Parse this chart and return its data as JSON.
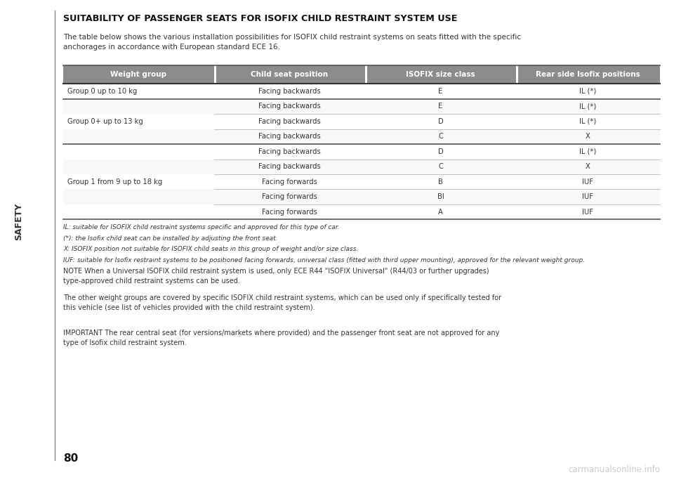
{
  "title": "SUITABILITY OF PASSENGER SEATS FOR ISOFIX CHILD RESTRAINT SYSTEM USE",
  "intro": "The table below shows the various installation possibilities for ISOFIX child restraint systems on seats fitted with the specific\nanchorages in accordance with European standard ECE 16.",
  "header": [
    "Weight group",
    "Child seat position",
    "ISOFIX size class",
    "Rear side Isofix positions"
  ],
  "header_bg": "#8c8c8c",
  "header_text_color": "#ffffff",
  "rows": [
    [
      "Group 0 up to 10 kg",
      "Facing backwards",
      "E",
      "IL (*)"
    ],
    [
      "",
      "Facing backwards",
      "E",
      "IL (*)"
    ],
    [
      "Group 0+ up to 13 kg",
      "Facing backwards",
      "D",
      "IL (*)"
    ],
    [
      "",
      "Facing backwards",
      "C",
      "X"
    ],
    [
      "",
      "Facing backwards",
      "D",
      "IL (*)"
    ],
    [
      "",
      "Facing backwards",
      "C",
      "X"
    ],
    [
      "Group 1 from 9 up to 18 kg",
      "Facing forwards",
      "B",
      "IUF"
    ],
    [
      "",
      "Facing forwards",
      "BI",
      "IUF"
    ],
    [
      "",
      "Facing forwards",
      "A",
      "IUF"
    ]
  ],
  "thick_separators_before": [
    1,
    4
  ],
  "footnotes": [
    "IL: suitable for ISOFIX child restraint systems specific and approved for this type of car.",
    "(*): the Isofix child seat can be installed by adjusting the front seat.",
    "X: ISOFIX position not suitable for ISOFIX child seats in this group of weight and/or size class.",
    "IUF: suitable for Isofix restraint systems to be positioned facing forwards, universal class (fitted with third upper mounting), approved for the relevant weight group."
  ],
  "note_text": "NOTE When a Universal ISOFIX child restraint system is used, only ECE R44 \"ISOFIX Universal\" (R44/03 or further upgrades)\ntype-approved child restraint systems can be used.",
  "other_text": "The other weight groups are covered by specific ISOFIX child restraint systems, which can be used only if specifically tested for\nthis vehicle (see list of vehicles provided with the child restraint system).",
  "important_text": "IMPORTANT The rear central seat (for versions/markets where provided) and the passenger front seat are not approved for any\ntype of Isofix child restraint system.",
  "page_number": "80",
  "watermark": "carmanualsonline.info",
  "safety_text": "SAFETY",
  "bg_color": "#ffffff",
  "text_color": "#333333",
  "line_color": "#aaaaaa",
  "thick_line_color": "#555555"
}
